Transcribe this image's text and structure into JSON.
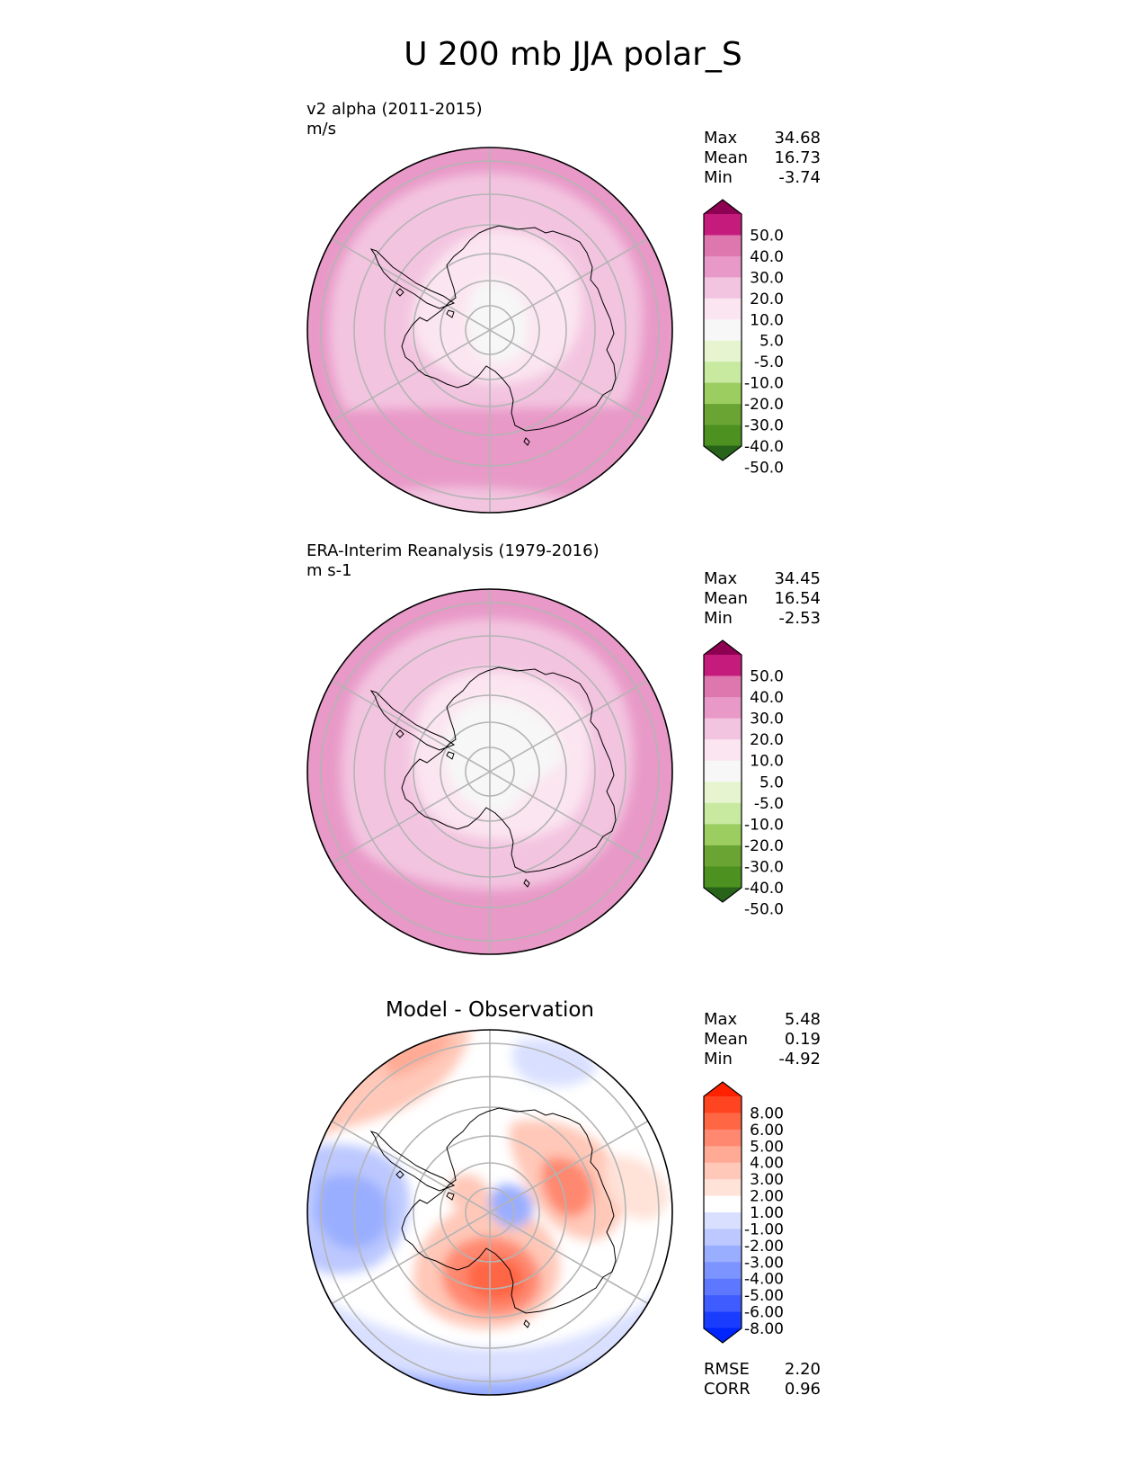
{
  "figure_title": "U 200 mb JJA polar_S",
  "panels": [
    {
      "name": "test",
      "title": "",
      "label_line1": "v2 alpha (2011-2015)",
      "label_line2": "m/s",
      "stats": {
        "max_label": "Max",
        "max": "34.68",
        "mean_label": "Mean",
        "mean": "16.73",
        "min_label": "Min",
        "min": "-3.74"
      },
      "colorbar_ticks": [
        "50.0",
        "40.0",
        "30.0",
        "20.0",
        "10.0",
        "5.0",
        "-5.0",
        "-10.0",
        "-20.0",
        "-30.0",
        "-40.0",
        "-50.0"
      ]
    },
    {
      "name": "reference",
      "title": "",
      "label_line1": "ERA-Interim Reanalysis (1979-2016)",
      "label_line2": "m s-1",
      "stats": {
        "max_label": "Max",
        "max": "34.45",
        "mean_label": "Mean",
        "mean": "16.54",
        "min_label": "Min",
        "min": "-2.53"
      },
      "colorbar_ticks": [
        "50.0",
        "40.0",
        "30.0",
        "20.0",
        "10.0",
        "5.0",
        "-5.0",
        "-10.0",
        "-20.0",
        "-30.0",
        "-40.0",
        "-50.0"
      ]
    },
    {
      "name": "difference",
      "title": "Model - Observation",
      "label_line1": "",
      "label_line2": "",
      "stats": {
        "max_label": "Max",
        "max": "5.48",
        "mean_label": "Mean",
        "mean": "0.19",
        "min_label": "Min",
        "min": "-4.92"
      },
      "colorbar_ticks": [
        "8.00",
        "6.00",
        "5.00",
        "4.00",
        "3.00",
        "2.00",
        "1.00",
        "-1.00",
        "-2.00",
        "-3.00",
        "-4.00",
        "-5.00",
        "-6.00",
        "-8.00"
      ],
      "rmse_label": "RMSE",
      "rmse": "2.20",
      "corr_label": "CORR",
      "corr": "0.96"
    }
  ],
  "colors": {
    "piyg": [
      "#8e0152",
      "#c51b7d",
      "#de77ae",
      "#e899c7",
      "#f3c4e0",
      "#fbe5f0",
      "#f7f7f7",
      "#e6f5d0",
      "#c7e9a0",
      "#9ccd60",
      "#6aa534",
      "#4d9221",
      "#276419"
    ],
    "bwr": [
      "#ff2200",
      "#ff4422",
      "#ff6644",
      "#ff8870",
      "#ffaa95",
      "#ffc8b8",
      "#ffe2d8",
      "#ffffff",
      "#d9e0ff",
      "#bcc8ff",
      "#9aaeff",
      "#7c94ff",
      "#5d78ff",
      "#3e5cff",
      "#1a3cff",
      "#0025ff"
    ]
  },
  "chart_data": [
    {
      "type": "heatmap",
      "projection": "south polar stereographic",
      "title": "v2 alpha (2011-2015)",
      "units": "m/s",
      "levels": [
        -50,
        -40,
        -30,
        -20,
        -10,
        -5,
        5,
        10,
        20,
        30,
        40,
        50
      ],
      "max": 34.68,
      "mean": 16.73,
      "min": -3.74
    },
    {
      "type": "heatmap",
      "projection": "south polar stereographic",
      "title": "ERA-Interim Reanalysis (1979-2016)",
      "units": "m s-1",
      "levels": [
        -50,
        -40,
        -30,
        -20,
        -10,
        -5,
        5,
        10,
        20,
        30,
        40,
        50
      ],
      "max": 34.45,
      "mean": 16.54,
      "min": -2.53
    },
    {
      "type": "heatmap",
      "projection": "south polar stereographic",
      "title": "Model - Observation",
      "levels": [
        -8,
        -6,
        -5,
        -4,
        -3,
        -2,
        -1,
        1,
        2,
        3,
        4,
        5,
        6,
        8
      ],
      "max": 5.48,
      "mean": 0.19,
      "min": -4.92,
      "rmse": 2.2,
      "corr": 0.96
    }
  ]
}
